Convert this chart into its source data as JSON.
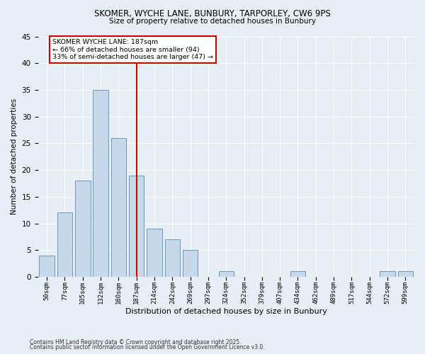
{
  "title": "SKOMER, WYCHE LANE, BUNBURY, TARPORLEY, CW6 9PS",
  "subtitle": "Size of property relative to detached houses in Bunbury",
  "xlabel": "Distribution of detached houses by size in Bunbury",
  "ylabel": "Number of detached properties",
  "bar_color": "#c8d8eb",
  "bar_edge_color": "#6699bb",
  "background_color": "#e8eef5",
  "grid_color": "#ffffff",
  "bin_labels": [
    "50sqm",
    "77sqm",
    "105sqm",
    "132sqm",
    "160sqm",
    "187sqm",
    "214sqm",
    "242sqm",
    "269sqm",
    "297sqm",
    "324sqm",
    "352sqm",
    "379sqm",
    "407sqm",
    "434sqm",
    "462sqm",
    "489sqm",
    "517sqm",
    "544sqm",
    "572sqm",
    "599sqm"
  ],
  "bar_values": [
    4,
    12,
    18,
    35,
    26,
    19,
    9,
    7,
    5,
    0,
    1,
    0,
    0,
    0,
    1,
    0,
    0,
    0,
    0,
    1,
    1
  ],
  "vline_x": 5,
  "vline_color": "#cc0000",
  "annotation_text": "SKOMER WYCHE LANE: 187sqm\n← 66% of detached houses are smaller (94)\n33% of semi-detached houses are larger (47) →",
  "annotation_box_color": "#ffffff",
  "annotation_box_edge": "#cc0000",
  "ylim": [
    0,
    45
  ],
  "yticks": [
    0,
    5,
    10,
    15,
    20,
    25,
    30,
    35,
    40,
    45
  ],
  "footnote1": "Contains HM Land Registry data © Crown copyright and database right 2025.",
  "footnote2": "Contains public sector information licensed under the Open Government Licence v3.0."
}
